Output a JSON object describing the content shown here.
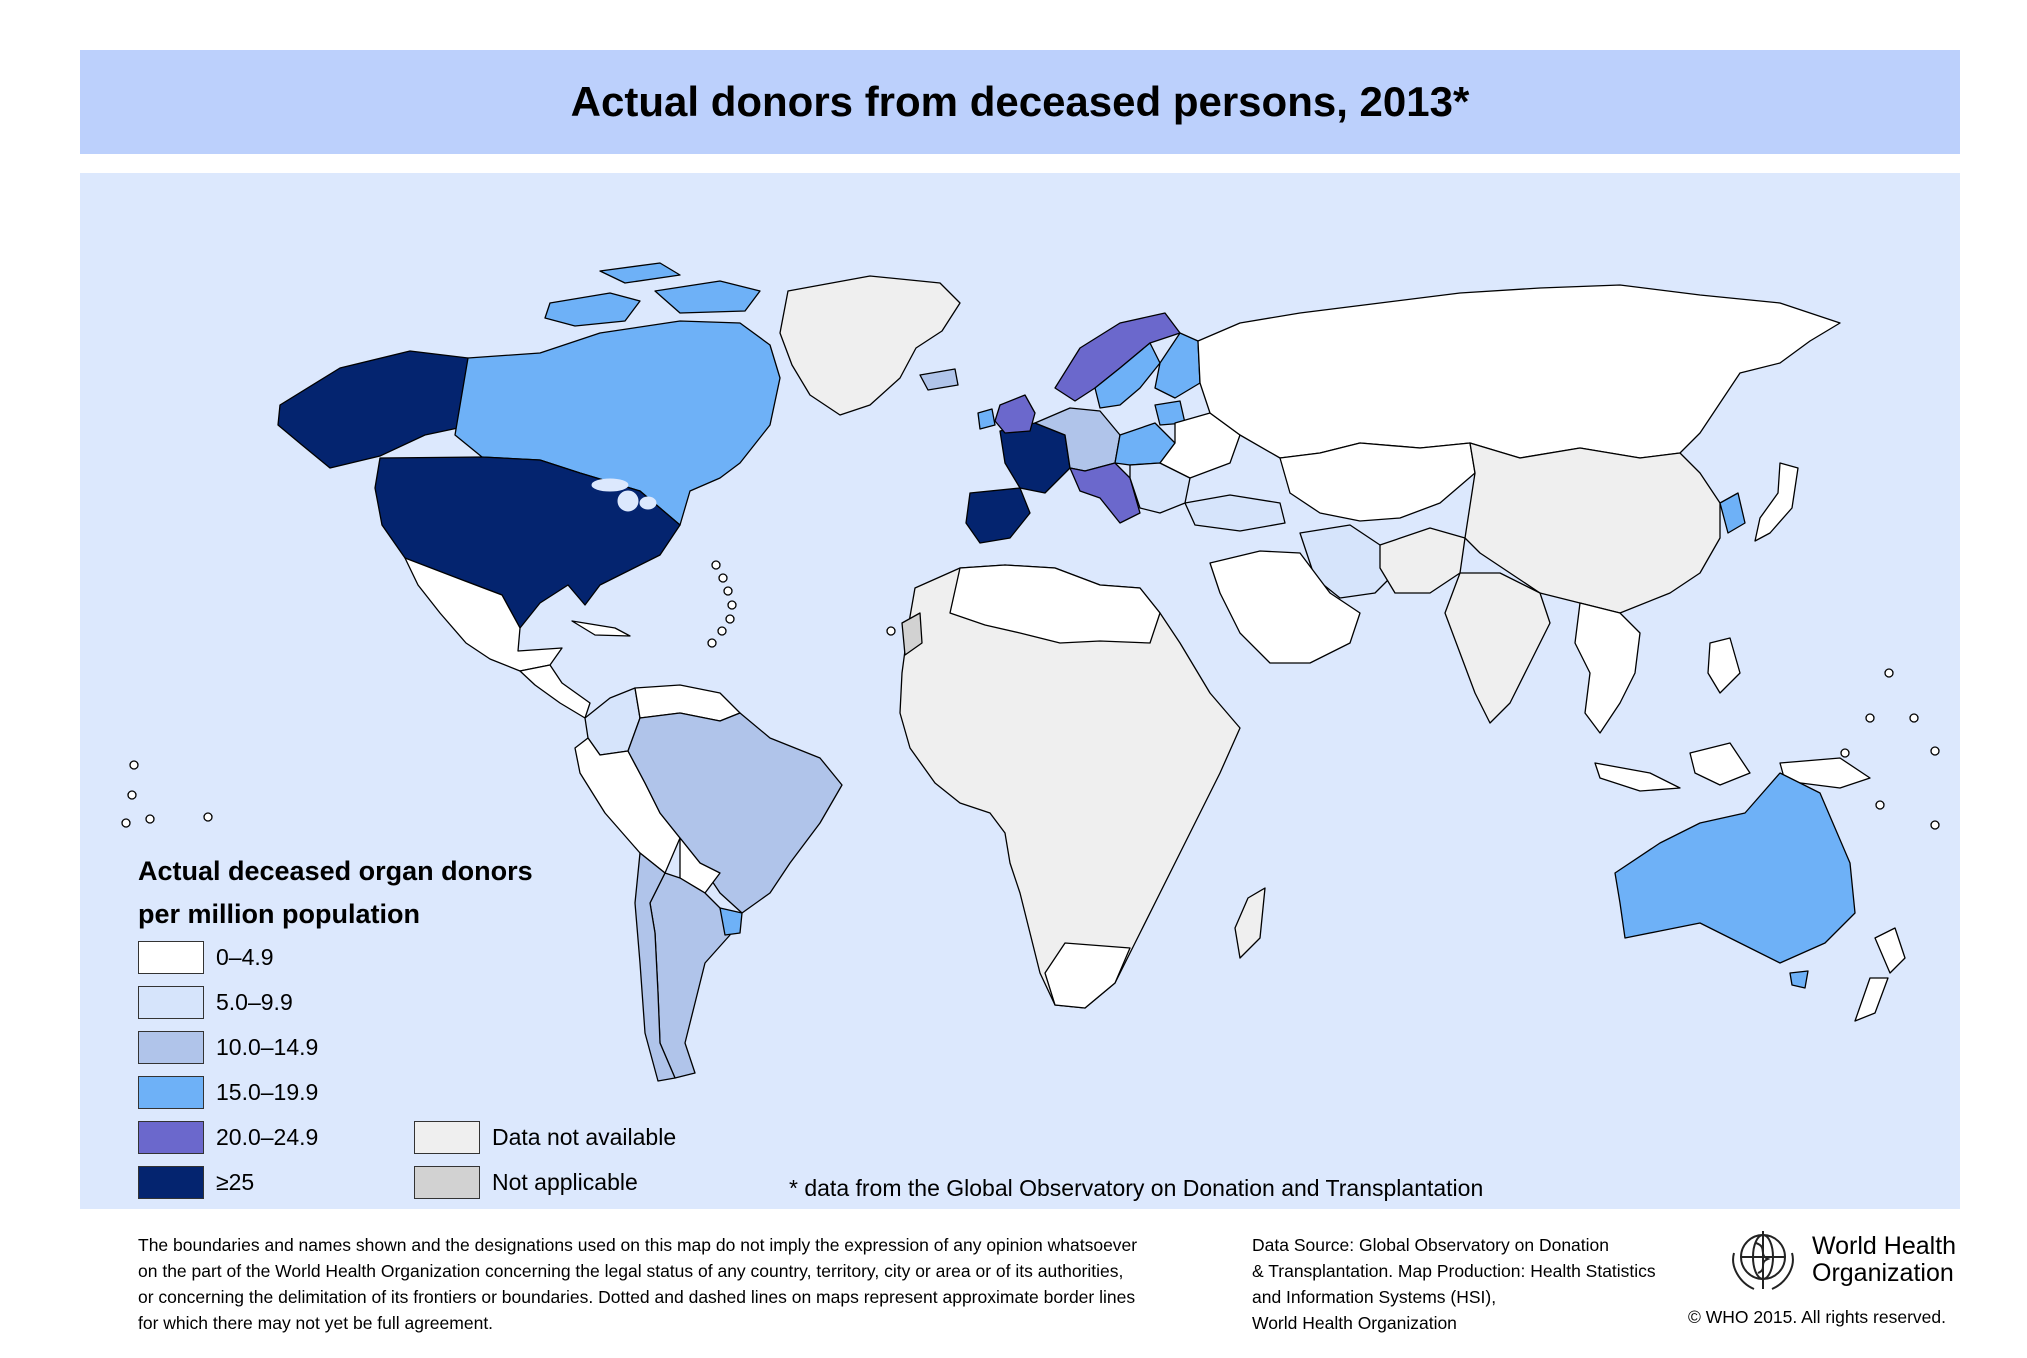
{
  "title": "Actual donors from deceased persons, 2013*",
  "legend": {
    "title_line1": "Actual deceased organ donors",
    "title_line2": "per million population",
    "classes": [
      {
        "label": "0–4.9",
        "color": "#ffffff"
      },
      {
        "label": "5.0–9.9",
        "color": "#d6e4fb"
      },
      {
        "label": "10.0–14.9",
        "color": "#b0c4ea"
      },
      {
        "label": "15.0–19.9",
        "color": "#6eb1f7"
      },
      {
        "label": "20.0–24.9",
        "color": "#6b68cc"
      },
      {
        "label": "≥25",
        "color": "#04246f"
      }
    ],
    "extra": [
      {
        "label": "Data not available",
        "color": "#efefef"
      },
      {
        "label": "Not applicable",
        "color": "#d2d2d2"
      }
    ]
  },
  "footnote": "* data from the Global Observatory on Donation and Transplantation",
  "disclaimer": [
    "The boundaries and names shown and the designations used on this map do not imply the expression of any opinion whatsoever",
    "on the part of the World Health Organization concerning the legal status of any country, territory, city or area or of its authorities,",
    "or concerning the delimitation of its frontiers or boundaries.  Dotted and dashed lines on maps represent approximate border lines",
    "for which there may not yet be full agreement."
  ],
  "source": [
    "Data Source: Global Observatory on Donation",
    "& Transplantation. Map Production: Health Statistics",
    "and Information Systems (HSI),",
    "World Health Organization"
  ],
  "organization": {
    "line1": "World Health",
    "line2": "Organization"
  },
  "copyright": "© WHO 2015. All rights reserved.",
  "colors": {
    "ocean": "#dce8fd",
    "title_bar": "#bcd0fc",
    "border": "#000000"
  }
}
